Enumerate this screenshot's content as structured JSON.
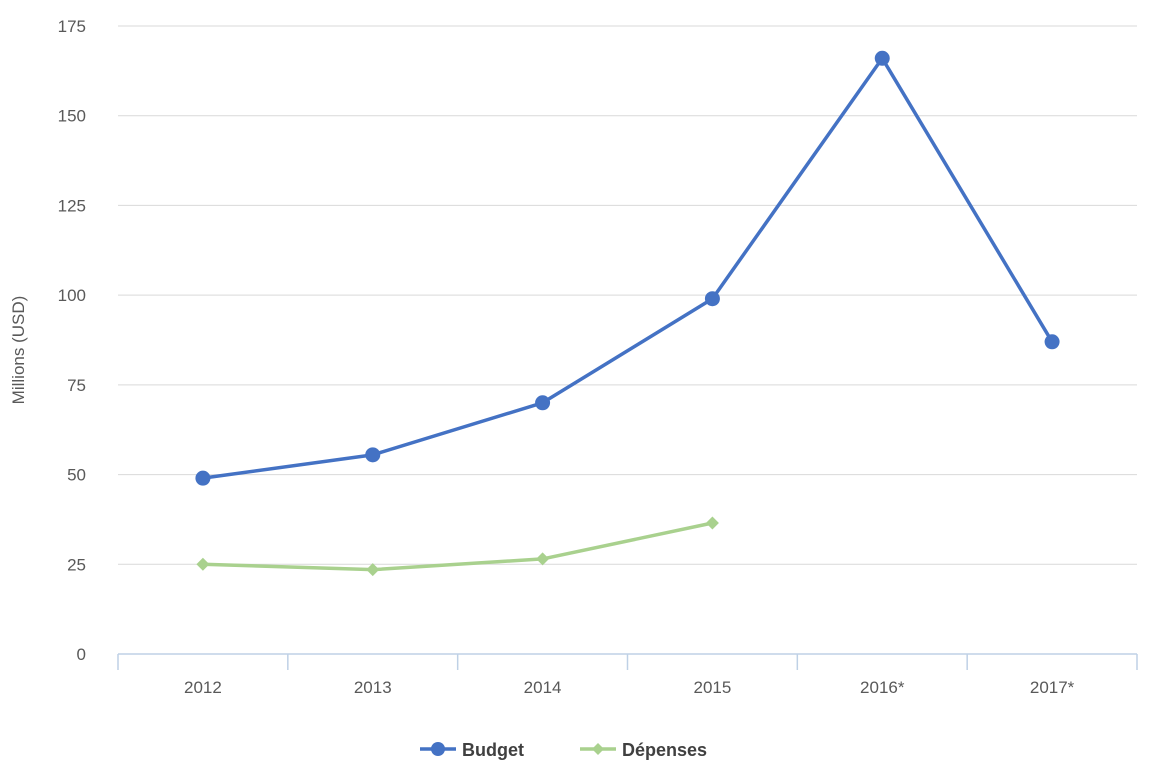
{
  "chart_data": {
    "type": "line",
    "categories": [
      "2012",
      "2013",
      "2014",
      "2015",
      "2016*",
      "2017*"
    ],
    "series": [
      {
        "name": "Budget",
        "values": [
          49,
          55.5,
          70,
          99,
          166,
          87
        ],
        "color": "#4472C4",
        "marker": "circle"
      },
      {
        "name": "Dépenses",
        "values": [
          25,
          23.5,
          26.5,
          36.5,
          null,
          null
        ],
        "color": "#A9D18E",
        "marker": "diamond"
      }
    ],
    "xlabel": "",
    "ylabel": "Millions (USD)",
    "ylim": [
      0,
      175
    ],
    "yticks": [
      "0",
      "25",
      "50",
      "75",
      "100",
      "125",
      "150",
      "175"
    ],
    "grid": true,
    "legend": "bottom-center",
    "gridline_color": "#D9D9D9",
    "axis_color": "#BFD1E6"
  }
}
